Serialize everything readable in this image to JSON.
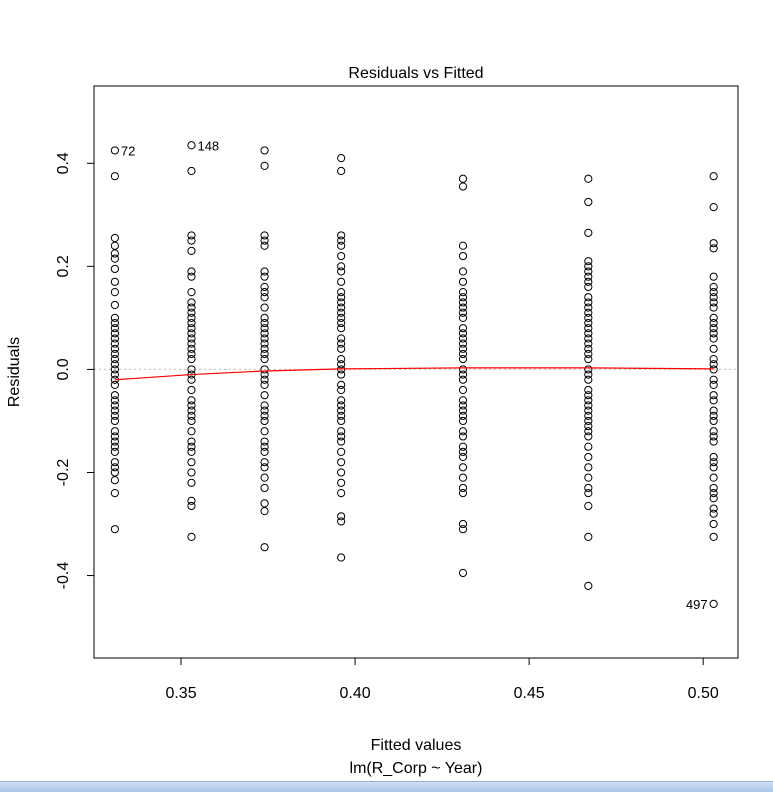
{
  "chart_data": {
    "type": "scatter",
    "title": "Residuals vs Fitted",
    "xlabel": "Fitted values",
    "subtitle": "lm(R_Corp ~ Year)",
    "ylabel": "Residuals",
    "xlim": [
      0.325,
      0.51
    ],
    "ylim": [
      -0.56,
      0.55
    ],
    "x_ticks": [
      0.35,
      0.4,
      0.45,
      0.5
    ],
    "x_tick_labels": [
      "0.35",
      "0.40",
      "0.45",
      "0.50"
    ],
    "y_ticks": [
      -0.4,
      -0.2,
      0.0,
      0.2,
      0.4
    ],
    "y_tick_labels": [
      "-0.4",
      "-0.2",
      "0.0",
      "0.2",
      "0.4"
    ],
    "zero_line": 0.0,
    "point_color": "#000000",
    "smooth_color": "#ff0000",
    "reference_line_color": "#bbbbbb",
    "groups": [
      {
        "x": 0.331,
        "y": [
          0.425,
          0.375,
          0.255,
          0.24,
          0.225,
          0.215,
          0.195,
          0.17,
          0.15,
          0.125,
          0.1,
          0.09,
          0.08,
          0.07,
          0.06,
          0.05,
          0.04,
          0.03,
          0.02,
          0.01,
          0.0,
          -0.01,
          -0.02,
          -0.03,
          -0.05,
          -0.06,
          -0.07,
          -0.08,
          -0.09,
          -0.1,
          -0.12,
          -0.13,
          -0.14,
          -0.15,
          -0.16,
          -0.18,
          -0.19,
          -0.2,
          -0.215,
          -0.24,
          -0.31
        ]
      },
      {
        "x": 0.353,
        "y": [
          0.435,
          0.385,
          0.26,
          0.25,
          0.23,
          0.19,
          0.18,
          0.15,
          0.13,
          0.12,
          0.11,
          0.1,
          0.09,
          0.08,
          0.07,
          0.06,
          0.05,
          0.04,
          0.03,
          0.02,
          0.0,
          -0.01,
          -0.02,
          -0.04,
          -0.06,
          -0.07,
          -0.08,
          -0.09,
          -0.1,
          -0.12,
          -0.14,
          -0.15,
          -0.16,
          -0.18,
          -0.2,
          -0.22,
          -0.255,
          -0.265,
          -0.325
        ]
      },
      {
        "x": 0.374,
        "y": [
          0.425,
          0.395,
          0.26,
          0.25,
          0.24,
          0.19,
          0.18,
          0.16,
          0.15,
          0.14,
          0.12,
          0.1,
          0.09,
          0.08,
          0.07,
          0.06,
          0.05,
          0.04,
          0.03,
          0.02,
          0.0,
          -0.01,
          -0.02,
          -0.03,
          -0.05,
          -0.07,
          -0.08,
          -0.09,
          -0.1,
          -0.12,
          -0.14,
          -0.15,
          -0.16,
          -0.18,
          -0.19,
          -0.21,
          -0.23,
          -0.26,
          -0.275,
          -0.345
        ]
      },
      {
        "x": 0.396,
        "y": [
          0.41,
          0.385,
          0.26,
          0.25,
          0.24,
          0.22,
          0.2,
          0.19,
          0.17,
          0.15,
          0.14,
          0.13,
          0.12,
          0.11,
          0.1,
          0.09,
          0.08,
          0.06,
          0.05,
          0.04,
          0.02,
          0.01,
          0.0,
          -0.01,
          -0.03,
          -0.04,
          -0.06,
          -0.07,
          -0.08,
          -0.09,
          -0.1,
          -0.12,
          -0.13,
          -0.14,
          -0.16,
          -0.18,
          -0.2,
          -0.22,
          -0.24,
          -0.285,
          -0.295,
          -0.365
        ]
      },
      {
        "x": 0.431,
        "y": [
          0.37,
          0.355,
          0.24,
          0.22,
          0.19,
          0.17,
          0.15,
          0.14,
          0.13,
          0.12,
          0.11,
          0.1,
          0.08,
          0.07,
          0.06,
          0.05,
          0.04,
          0.03,
          0.02,
          0.0,
          -0.01,
          -0.02,
          -0.04,
          -0.06,
          -0.07,
          -0.08,
          -0.09,
          -0.1,
          -0.12,
          -0.13,
          -0.15,
          -0.16,
          -0.17,
          -0.19,
          -0.21,
          -0.23,
          -0.24,
          -0.3,
          -0.31,
          -0.395
        ]
      },
      {
        "x": 0.467,
        "y": [
          0.37,
          0.325,
          0.265,
          0.21,
          0.2,
          0.19,
          0.18,
          0.17,
          0.16,
          0.14,
          0.13,
          0.12,
          0.11,
          0.1,
          0.09,
          0.08,
          0.07,
          0.06,
          0.05,
          0.04,
          0.03,
          0.02,
          0.0,
          -0.01,
          -0.02,
          -0.04,
          -0.05,
          -0.06,
          -0.07,
          -0.08,
          -0.09,
          -0.1,
          -0.11,
          -0.12,
          -0.13,
          -0.15,
          -0.17,
          -0.19,
          -0.21,
          -0.23,
          -0.24,
          -0.265,
          -0.325,
          -0.42
        ]
      },
      {
        "x": 0.503,
        "y": [
          0.375,
          0.315,
          0.245,
          0.235,
          0.18,
          0.16,
          0.15,
          0.14,
          0.13,
          0.12,
          0.1,
          0.09,
          0.08,
          0.07,
          0.06,
          0.04,
          0.02,
          0.01,
          0.0,
          -0.02,
          -0.03,
          -0.05,
          -0.06,
          -0.08,
          -0.09,
          -0.1,
          -0.12,
          -0.13,
          -0.14,
          -0.17,
          -0.18,
          -0.19,
          -0.21,
          -0.23,
          -0.24,
          -0.25,
          -0.27,
          -0.28,
          -0.3,
          -0.325,
          -0.455
        ]
      }
    ],
    "smooth_line": {
      "x": [
        0.331,
        0.353,
        0.374,
        0.396,
        0.431,
        0.467,
        0.503
      ],
      "y": [
        -0.02,
        -0.01,
        -0.003,
        0.001,
        0.003,
        0.003,
        0.001
      ]
    },
    "point_labels": [
      {
        "text": "72",
        "x": 0.331,
        "y": 0.425,
        "side": "right"
      },
      {
        "text": "148",
        "x": 0.353,
        "y": 0.435,
        "side": "right"
      },
      {
        "text": "497",
        "x": 0.503,
        "y": -0.455,
        "side": "left"
      }
    ]
  }
}
